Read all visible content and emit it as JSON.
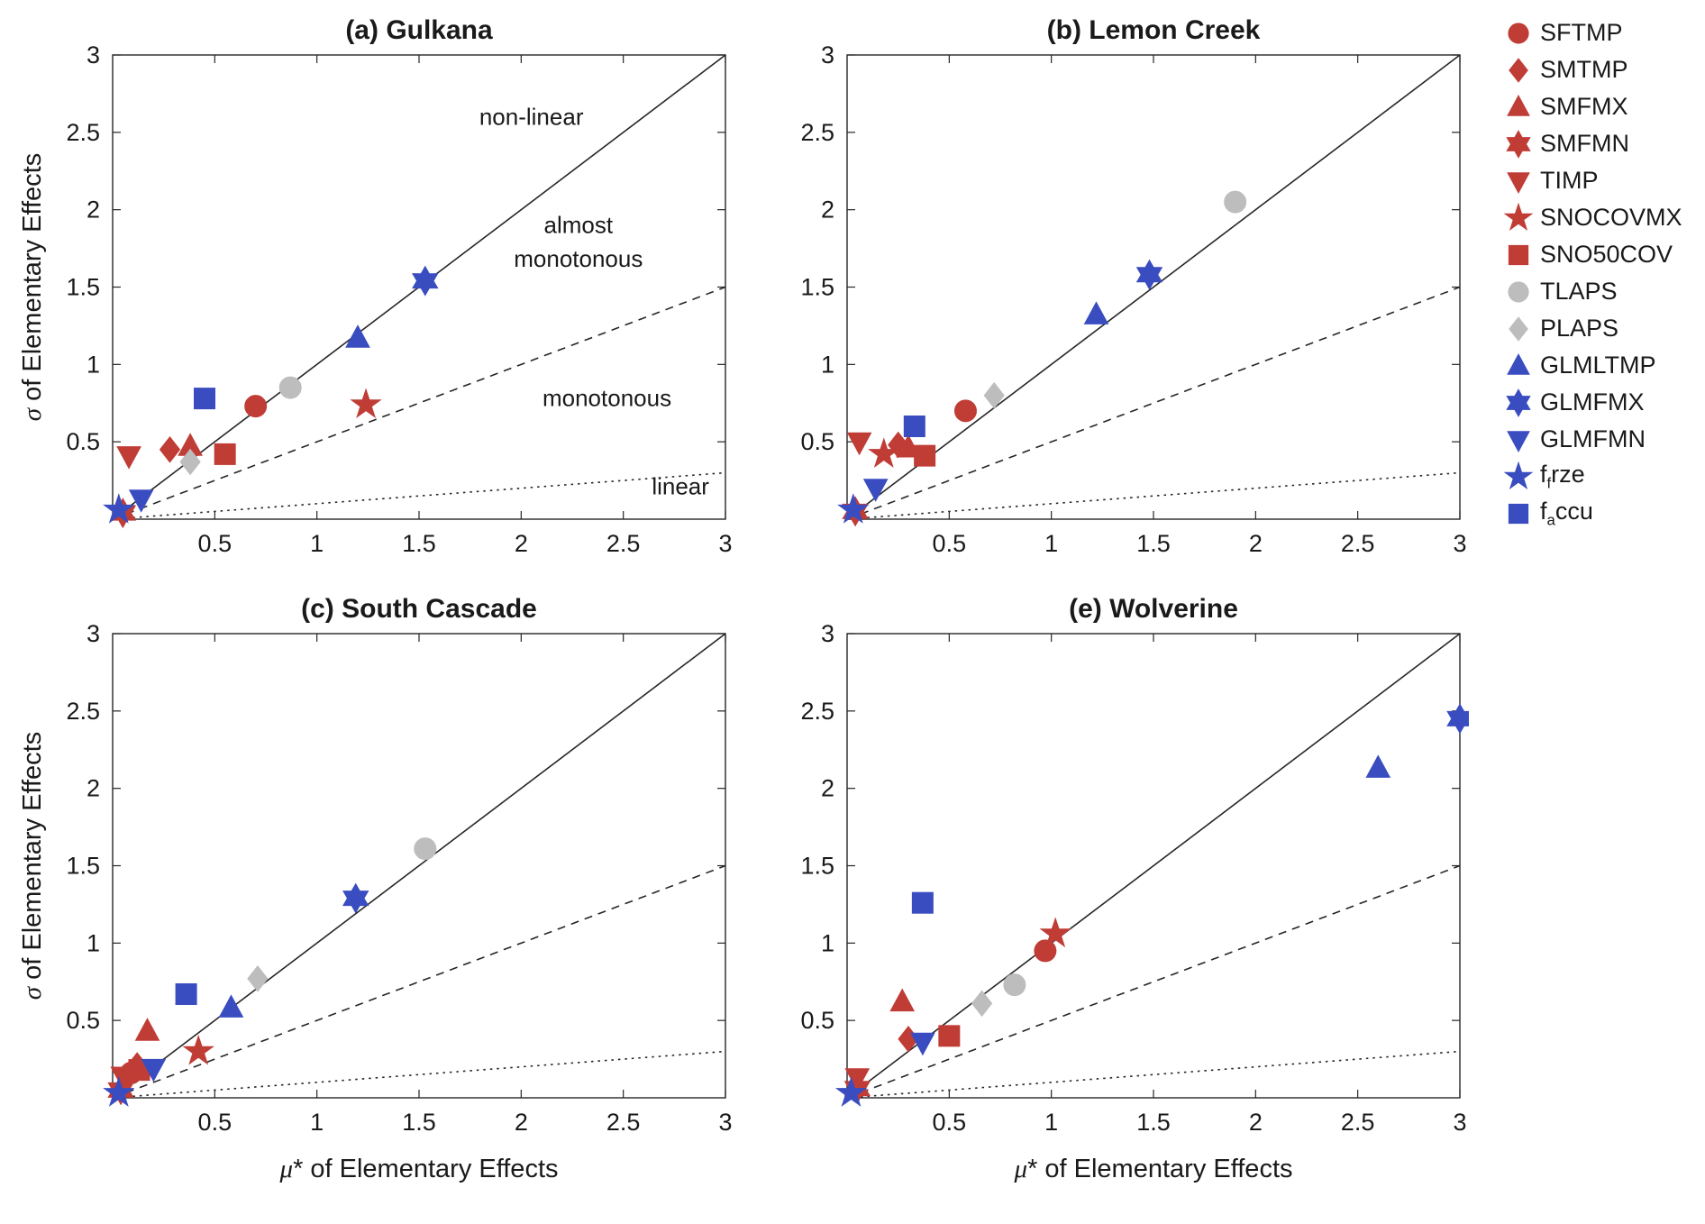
{
  "figure": {
    "background": "#ffffff",
    "xlabel_greek": "μ",
    "xlabel_rest": "* of Elementary Effects",
    "ylabel_greek": "σ",
    "ylabel_rest": " of Elementary Effects"
  },
  "colors": {
    "red": "#c03d36",
    "blue": "#3a4dc0",
    "gray": "#bdbdbd",
    "axis": "#262626",
    "annotation": "#a9a9a9"
  },
  "axes": {
    "lim": [
      0,
      3
    ],
    "ticks": [
      0.5,
      1,
      1.5,
      2,
      2.5,
      3
    ],
    "tick_labels": [
      "0.5",
      "1",
      "1.5",
      "2",
      "2.5",
      "3"
    ]
  },
  "reference_lines": [
    {
      "name": "nonlinear-boundary",
      "style": "solid",
      "slope": 1
    },
    {
      "name": "almost-monotonous-boundary",
      "style": "dashed",
      "slope": 0.5
    },
    {
      "name": "linear-boundary",
      "style": "dotted",
      "slope": 0.1
    }
  ],
  "series_styles": {
    "SFTMP": {
      "marker": "circle",
      "color": "red"
    },
    "SMTMP": {
      "marker": "diamond",
      "color": "red"
    },
    "SMFMX": {
      "marker": "triangle-up",
      "color": "red"
    },
    "SMFMN": {
      "marker": "star6",
      "color": "red"
    },
    "TIMP": {
      "marker": "triangle-down",
      "color": "red"
    },
    "SNOCOVMX": {
      "marker": "star5",
      "color": "red"
    },
    "SNO50COV": {
      "marker": "square",
      "color": "red"
    },
    "TLAPS": {
      "marker": "circle",
      "color": "gray"
    },
    "PLAPS": {
      "marker": "diamond",
      "color": "gray"
    },
    "GLMLTMP": {
      "marker": "triangle-up",
      "color": "blue"
    },
    "GLMFMX": {
      "marker": "star6",
      "color": "blue"
    },
    "GLMFMN": {
      "marker": "triangle-down",
      "color": "blue"
    },
    "f_frze": {
      "marker": "star5",
      "color": "blue"
    },
    "f_accu": {
      "marker": "square",
      "color": "blue"
    }
  },
  "legend": {
    "items": [
      {
        "name": "SFTMP",
        "label": "SFTMP"
      },
      {
        "name": "SMTMP",
        "label": "SMTMP"
      },
      {
        "name": "SMFMX",
        "label": "SMFMX"
      },
      {
        "name": "SMFMN",
        "label": "SMFMN"
      },
      {
        "name": "TIMP",
        "label": "TIMP"
      },
      {
        "name": "SNOCOVMX",
        "label": "SNOCOVMX"
      },
      {
        "name": "SNO50COV",
        "label": "SNO50COV"
      },
      {
        "name": "TLAPS",
        "label": "TLAPS"
      },
      {
        "name": "PLAPS",
        "label": "PLAPS"
      },
      {
        "name": "GLMLTMP",
        "label": "GLMLTMP"
      },
      {
        "name": "GLMFMX",
        "label": "GLMFMX"
      },
      {
        "name": "GLMFMN",
        "label": "GLMFMN"
      },
      {
        "name": "f_frze",
        "label_pre": "f",
        "label_sub": "f",
        "label_post": "rze"
      },
      {
        "name": "f_accu",
        "label_pre": "f",
        "label_sub": "a",
        "label_post": "ccu"
      }
    ]
  },
  "chart_data": [
    {
      "type": "scatter",
      "panel_label": "a",
      "title": "(a) Gulkana",
      "xlabel": "μ* of Elementary Effects",
      "ylabel": "σ of Elementary Effects",
      "xlim": [
        0,
        3
      ],
      "ylim": [
        0,
        3
      ],
      "annotations": [
        {
          "text": "non-linear",
          "x": 2.05,
          "y": 2.55
        },
        {
          "text": "almost",
          "x": 2.28,
          "y": 1.85
        },
        {
          "text": "monotonous",
          "x": 2.28,
          "y": 1.63
        },
        {
          "text": "monotonous",
          "x": 2.42,
          "y": 0.73
        },
        {
          "text": "linear",
          "x": 2.78,
          "y": 0.16
        }
      ],
      "points": [
        {
          "series": "SFTMP",
          "x": 0.7,
          "y": 0.73
        },
        {
          "series": "SMTMP",
          "x": 0.28,
          "y": 0.45
        },
        {
          "series": "SMFMX",
          "x": 0.38,
          "y": 0.47
        },
        {
          "series": "SMFMN",
          "x": 0.05,
          "y": 0.04
        },
        {
          "series": "TIMP",
          "x": 0.08,
          "y": 0.41
        },
        {
          "series": "SNOCOVMX",
          "x": 1.24,
          "y": 0.74
        },
        {
          "series": "SNO50COV",
          "x": 0.55,
          "y": 0.42
        },
        {
          "series": "TLAPS",
          "x": 0.87,
          "y": 0.85
        },
        {
          "series": "PLAPS",
          "x": 0.38,
          "y": 0.37
        },
        {
          "series": "GLMLTMP",
          "x": 1.2,
          "y": 1.17
        },
        {
          "series": "GLMFMX",
          "x": 1.53,
          "y": 1.54
        },
        {
          "series": "GLMFMN",
          "x": 0.14,
          "y": 0.13
        },
        {
          "series": "f_frze",
          "x": 0.03,
          "y": 0.06
        },
        {
          "series": "f_accu",
          "x": 0.45,
          "y": 0.78
        }
      ]
    },
    {
      "type": "scatter",
      "panel_label": "b",
      "title": "(b) Lemon Creek",
      "xlabel": "μ* of Elementary Effects",
      "ylabel": "σ of Elementary Effects",
      "xlim": [
        0,
        3
      ],
      "ylim": [
        0,
        3
      ],
      "annotations": [],
      "points": [
        {
          "series": "SFTMP",
          "x": 0.58,
          "y": 0.7
        },
        {
          "series": "SMTMP",
          "x": 0.25,
          "y": 0.48
        },
        {
          "series": "SMFMX",
          "x": 0.3,
          "y": 0.46
        },
        {
          "series": "SMFMN",
          "x": 0.04,
          "y": 0.05
        },
        {
          "series": "TIMP",
          "x": 0.06,
          "y": 0.5
        },
        {
          "series": "SNOCOVMX",
          "x": 0.18,
          "y": 0.42
        },
        {
          "series": "SNO50COV",
          "x": 0.38,
          "y": 0.41
        },
        {
          "series": "TLAPS",
          "x": 1.9,
          "y": 2.05
        },
        {
          "series": "PLAPS",
          "x": 0.72,
          "y": 0.8
        },
        {
          "series": "GLMLTMP",
          "x": 1.22,
          "y": 1.32
        },
        {
          "series": "GLMFMX",
          "x": 1.48,
          "y": 1.58
        },
        {
          "series": "GLMFMN",
          "x": 0.14,
          "y": 0.2
        },
        {
          "series": "f_frze",
          "x": 0.03,
          "y": 0.06
        },
        {
          "series": "f_accu",
          "x": 0.33,
          "y": 0.6
        }
      ]
    },
    {
      "type": "scatter",
      "panel_label": "c",
      "title": "(c) South Cascade",
      "xlabel": "μ* of Elementary Effects",
      "ylabel": "σ of Elementary Effects",
      "xlim": [
        0,
        3
      ],
      "ylim": [
        0,
        3
      ],
      "annotations": [],
      "points": [
        {
          "series": "SFTMP",
          "x": 0.09,
          "y": 0.16
        },
        {
          "series": "SMTMP",
          "x": 0.12,
          "y": 0.21
        },
        {
          "series": "SMFMX",
          "x": 0.17,
          "y": 0.43
        },
        {
          "series": "SMFMN",
          "x": 0.04,
          "y": 0.05
        },
        {
          "series": "TIMP",
          "x": 0.05,
          "y": 0.14
        },
        {
          "series": "SNOCOVMX",
          "x": 0.42,
          "y": 0.3
        },
        {
          "series": "SNO50COV",
          "x": 0.13,
          "y": 0.18
        },
        {
          "series": "TLAPS",
          "x": 1.53,
          "y": 1.61
        },
        {
          "series": "PLAPS",
          "x": 0.71,
          "y": 0.77
        },
        {
          "series": "GLMLTMP",
          "x": 0.58,
          "y": 0.58
        },
        {
          "series": "GLMFMX",
          "x": 1.19,
          "y": 1.29
        },
        {
          "series": "GLMFMN",
          "x": 0.2,
          "y": 0.19
        },
        {
          "series": "f_frze",
          "x": 0.03,
          "y": 0.03
        },
        {
          "series": "f_accu",
          "x": 0.36,
          "y": 0.67
        }
      ]
    },
    {
      "type": "scatter",
      "panel_label": "e",
      "title": "(e) Wolverine",
      "xlabel": "μ* of Elementary Effects",
      "ylabel": "σ of Elementary Effects",
      "xlim": [
        0,
        3
      ],
      "ylim": [
        0,
        3
      ],
      "annotations": [],
      "points": [
        {
          "series": "SFTMP",
          "x": 0.97,
          "y": 0.95
        },
        {
          "series": "SMTMP",
          "x": 0.3,
          "y": 0.38
        },
        {
          "series": "SMFMX",
          "x": 0.27,
          "y": 0.62
        },
        {
          "series": "SMFMN",
          "x": 0.05,
          "y": 0.06
        },
        {
          "series": "TIMP",
          "x": 0.05,
          "y": 0.13
        },
        {
          "series": "SNOCOVMX",
          "x": 1.02,
          "y": 1.06
        },
        {
          "series": "SNO50COV",
          "x": 0.5,
          "y": 0.4
        },
        {
          "series": "TLAPS",
          "x": 0.82,
          "y": 0.73
        },
        {
          "series": "PLAPS",
          "x": 0.66,
          "y": 0.61
        },
        {
          "series": "GLMLTMP",
          "x": 2.6,
          "y": 2.13
        },
        {
          "series": "GLMFMX",
          "x": 3.0,
          "y": 2.45
        },
        {
          "series": "GLMFMN",
          "x": 0.37,
          "y": 0.36
        },
        {
          "series": "f_frze",
          "x": 0.02,
          "y": 0.03
        },
        {
          "series": "f_accu",
          "x": 0.37,
          "y": 1.26
        }
      ]
    }
  ]
}
